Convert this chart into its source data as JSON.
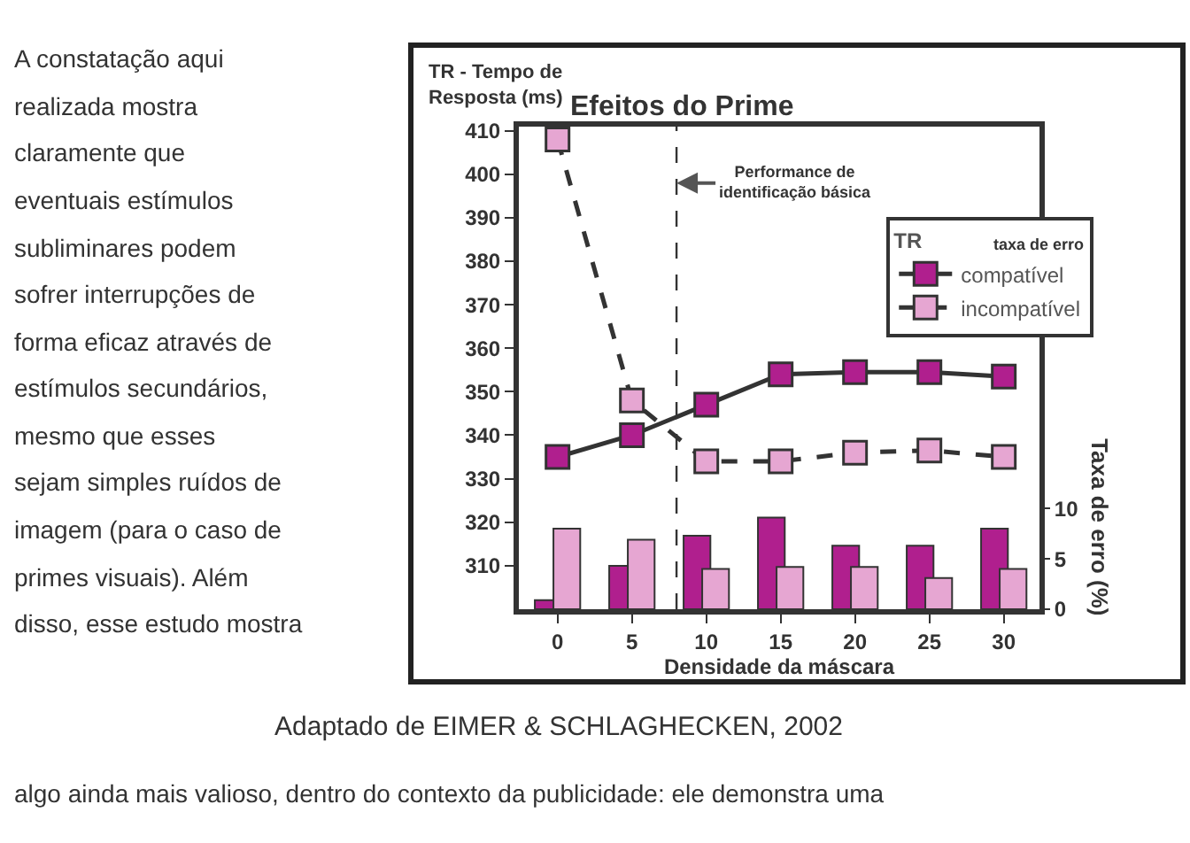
{
  "chart_data": {
    "type": "line",
    "title": "Efeitos do Prime",
    "xlabel": "Densidade da máscara",
    "ylabel": "TR - Tempo de Resposta (ms)",
    "y2label": "Taxa de erro (%)",
    "legend_title": "TR",
    "x": [
      0,
      5,
      10,
      15,
      20,
      25,
      30
    ],
    "series": [
      {
        "name": "compatível",
        "color": "#b01f8e",
        "values": [
          335,
          340,
          347,
          354,
          354.5,
          354.5,
          353.5
        ],
        "line_style": "solid"
      },
      {
        "name": "incompatível",
        "color": "#e6a6d2",
        "values": [
          408,
          348,
          334,
          334,
          336,
          336.5,
          335
        ],
        "line_style": "dashed"
      },
      {
        "type": "bar",
        "axis": "y2",
        "color": "#b01f8e",
        "values": [
          0.9,
          4.3,
          7.3,
          9.1,
          6.3,
          6.3,
          8.0
        ]
      },
      {
        "type": "bar",
        "axis": "y2",
        "color": "#e6a6d2",
        "values": [
          8.0,
          6.9,
          4.0,
          4.2,
          4.2,
          3.1,
          4.0
        ]
      }
    ],
    "xlim": [
      -2.6,
      32.4
    ],
    "xticks": [
      0,
      5,
      10,
      15,
      20,
      25,
      30
    ],
    "ylim": [
      300,
      411
    ],
    "yticks": [
      310,
      320,
      330,
      340,
      350,
      360,
      370,
      380,
      390,
      400,
      410
    ],
    "y2lim": [
      0,
      48
    ],
    "y2ticks": [
      0,
      5,
      10
    ],
    "ref_lines": [
      {
        "axis": "x",
        "value": 8,
        "label": "Performance de identificação básica",
        "line_style": "dashed"
      }
    ],
    "marker": "square",
    "legend": "top right",
    "annotations": [
      "Adaptado de EIMER & SCHLAGHECKEN, 2002",
      "taxa de erro",
      "A constatação aqui",
      "realizada mostra",
      "claramente que",
      "eventuais estímulos",
      "subliminares podem",
      "sofrer interrupções de",
      "forma eficaz através de",
      "estímulos secundários,",
      "mesmo que esses",
      "sejam simples ruídos de",
      "imagem (para o caso de",
      "primes visuais). Além",
      "disso, esse estudo mostra",
      "algo ainda mais valioso, dentro do contexto da publicidade: ele demonstra uma"
    ]
  }
}
